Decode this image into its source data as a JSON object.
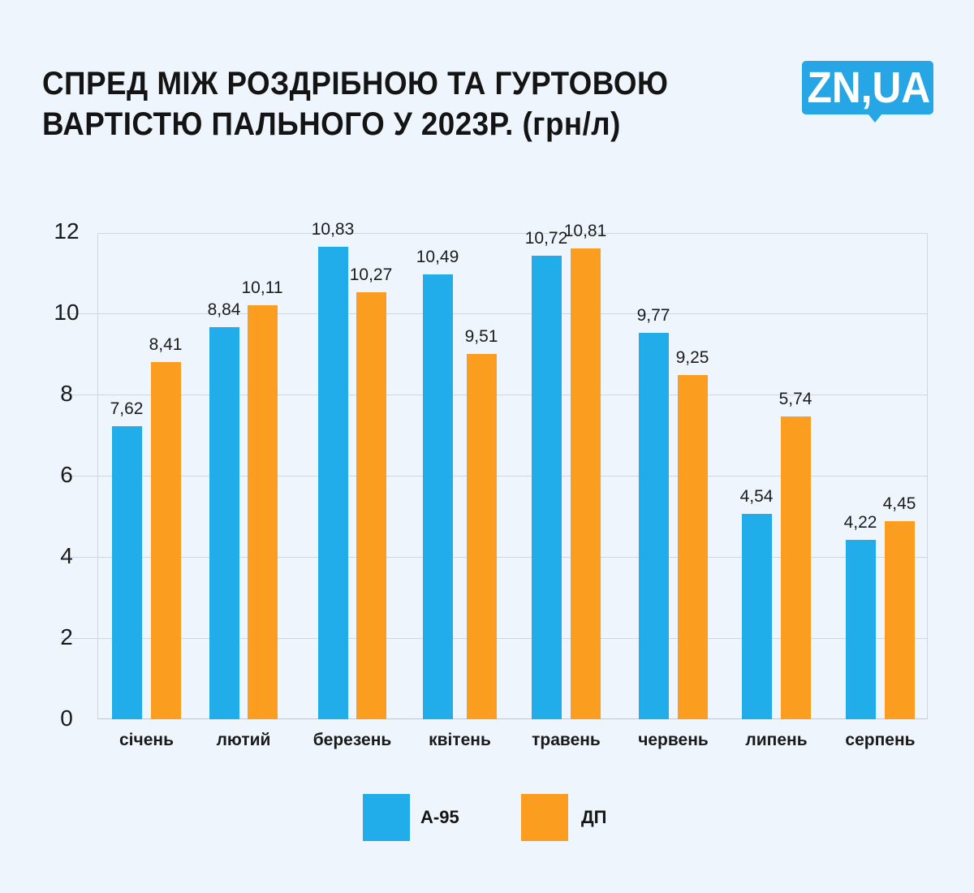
{
  "header": {
    "title_line1": "СПРЕД МІЖ РОЗДРІБНОЮ ТА ГУРТОВОЮ",
    "title_line2": "ВАРТІСТЮ ПАЛЬНОГО У 2023Р. (грн/л)",
    "logo_text": "ZN,UA"
  },
  "colors": {
    "background": "#eef5fc",
    "a95": "#21acea",
    "dp": "#fb9d1e",
    "logo": "#27a6e5",
    "grid": "#cfd6df"
  },
  "axis": {
    "yticks": [
      "0",
      "2",
      "4",
      "6",
      "8",
      "10",
      "12"
    ]
  },
  "legend": {
    "items": [
      {
        "label": "А-95",
        "color": "#21acea"
      },
      {
        "label": "ДП",
        "color": "#fb9d1e"
      }
    ]
  },
  "chart_data": {
    "type": "bar",
    "title": "СПРЕД МІЖ РОЗДРІБНОЮ ТА ГУРТОВОЮ ВАРТІСТЮ ПАЛЬНОГО У 2023Р. (грн/л)",
    "xlabel": "",
    "ylabel": "",
    "ylim": [
      0,
      12
    ],
    "yticks": [
      0,
      2,
      4,
      6,
      8,
      10,
      12
    ],
    "grid": true,
    "legend_position": "bottom",
    "categories": [
      "січень",
      "лютий",
      "березень",
      "квітень",
      "травень",
      "червень",
      "липень",
      "серпень"
    ],
    "series": [
      {
        "name": "А-95",
        "color": "#21acea",
        "values": [
          7.62,
          8.84,
          10.83,
          10.49,
          10.72,
          9.77,
          4.54,
          4.22
        ],
        "labels": [
          "7,62",
          "8,84",
          "10,83",
          "10,49",
          "10,72",
          "9,77",
          "4,54",
          "4,22"
        ]
      },
      {
        "name": "ДП",
        "color": "#fb9d1e",
        "values": [
          8.41,
          10.11,
          10.27,
          9.51,
          10.81,
          9.25,
          5.74,
          4.45
        ],
        "labels": [
          "8,41",
          "10,11",
          "10,27",
          "9,51",
          "10,81",
          "9,25",
          "5,74",
          "4,45"
        ]
      }
    ],
    "rendered_bar_heights_on_axis": {
      "А-95": [
        7.22,
        9.66,
        11.64,
        10.96,
        11.42,
        9.52,
        5.06,
        4.42
      ],
      "ДП": [
        8.8,
        10.2,
        10.52,
        9.0,
        11.6,
        8.48,
        7.46,
        4.88
      ]
    }
  }
}
